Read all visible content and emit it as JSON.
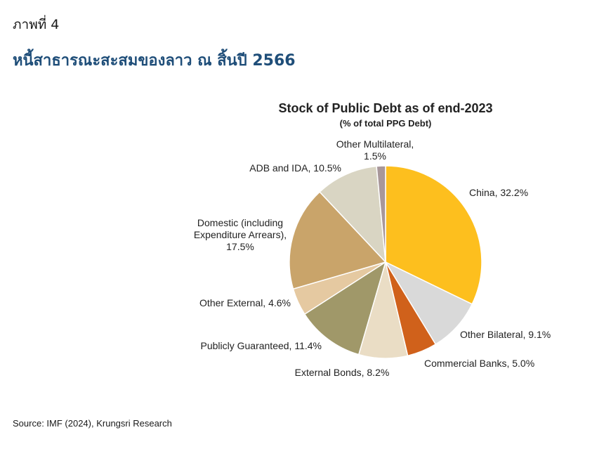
{
  "figure_label": "ภาพที่ 4",
  "figure_title": "หนี้สาธารณะสะสมของลาว ณ สิ้นปี 2566",
  "source": "Source: IMF (2024), Krungsri Research",
  "chart_data": {
    "type": "pie",
    "title": "Stock of Public Debt as of end-2023",
    "subtitle": "(% of total PPG Debt)",
    "start": "12 o'clock",
    "direction": "clockwise",
    "slices": [
      {
        "name": "China",
        "value": 32.2,
        "color": "#FDBF1E",
        "label_lines": [
          "China, 32.2%"
        ]
      },
      {
        "name": "Other Bilateral",
        "value": 9.1,
        "color": "#D9D9D9",
        "label_lines": [
          "Other Bilateral, 9.1%"
        ]
      },
      {
        "name": "Commercial Banks",
        "value": 5.0,
        "color": "#D0611B",
        "label_lines": [
          "Commercial Banks, 5.0%"
        ]
      },
      {
        "name": "External Bonds",
        "value": 8.2,
        "color": "#EADDC5",
        "label_lines": [
          "External Bonds, 8.2%"
        ]
      },
      {
        "name": "Publicly Guaranteed",
        "value": 11.4,
        "color": "#A09869",
        "label_lines": [
          "Publicly Guaranteed, 11.4%"
        ]
      },
      {
        "name": "Other External",
        "value": 4.6,
        "color": "#E5C9A1",
        "label_lines": [
          "Other External, 4.6%"
        ]
      },
      {
        "name": "Domestic (including Expenditure Arrears)",
        "value": 17.5,
        "color": "#C9A46A",
        "label_lines": [
          "Domestic (including",
          "Expenditure Arrears),",
          "17.5%"
        ]
      },
      {
        "name": "ADB and IDA",
        "value": 10.5,
        "color": "#D9D5C3",
        "label_lines": [
          "ADB and IDA, 10.5%"
        ]
      },
      {
        "name": "Other Multilateral",
        "value": 1.5,
        "color": "#A8979A",
        "label_lines": [
          "Other Multilateral,",
          "1.5%"
        ]
      }
    ]
  }
}
